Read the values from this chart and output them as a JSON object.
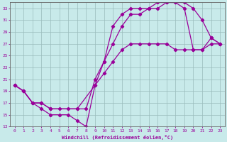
{
  "xlabel": "Windchill (Refroidissement éolien,°C)",
  "bg_color": "#c8eaea",
  "line_color": "#990099",
  "grid_color": "#99bbbb",
  "xlim": [
    -0.5,
    23.5
  ],
  "ylim": [
    13,
    34
  ],
  "xticks": [
    0,
    1,
    2,
    3,
    4,
    5,
    6,
    7,
    8,
    9,
    10,
    11,
    12,
    13,
    14,
    15,
    16,
    17,
    18,
    19,
    20,
    21,
    22,
    23
  ],
  "yticks": [
    13,
    15,
    17,
    19,
    21,
    23,
    25,
    27,
    29,
    31,
    33
  ],
  "line1_x": [
    0,
    1,
    2,
    3,
    4,
    5,
    6,
    7,
    8,
    9,
    10,
    11,
    12,
    13,
    14,
    15,
    16,
    17,
    18,
    19,
    20,
    21,
    22,
    23
  ],
  "line1_y": [
    20,
    19,
    17,
    16,
    15,
    15,
    15,
    14,
    13,
    20,
    24,
    30,
    32,
    33,
    33,
    33,
    34,
    34,
    34,
    33,
    26,
    26,
    28,
    27
  ],
  "line2_x": [
    0,
    1,
    2,
    3,
    4,
    5,
    6,
    7,
    8,
    9,
    10,
    11,
    12,
    13,
    14,
    15,
    16,
    17,
    18,
    19,
    20,
    21,
    22,
    23
  ],
  "line2_y": [
    20,
    19,
    17,
    17,
    16,
    16,
    16,
    16,
    16,
    21,
    24,
    27,
    30,
    32,
    32,
    33,
    33,
    34,
    34,
    34,
    33,
    31,
    28,
    27
  ],
  "line3_x": [
    0,
    1,
    2,
    3,
    4,
    7,
    9,
    10,
    11,
    12,
    13,
    14,
    15,
    16,
    17,
    18,
    19,
    20,
    21,
    22,
    23
  ],
  "line3_y": [
    20,
    19,
    17,
    17,
    16,
    16,
    20,
    22,
    24,
    26,
    27,
    27,
    27,
    27,
    27,
    26,
    26,
    26,
    26,
    27,
    27
  ]
}
